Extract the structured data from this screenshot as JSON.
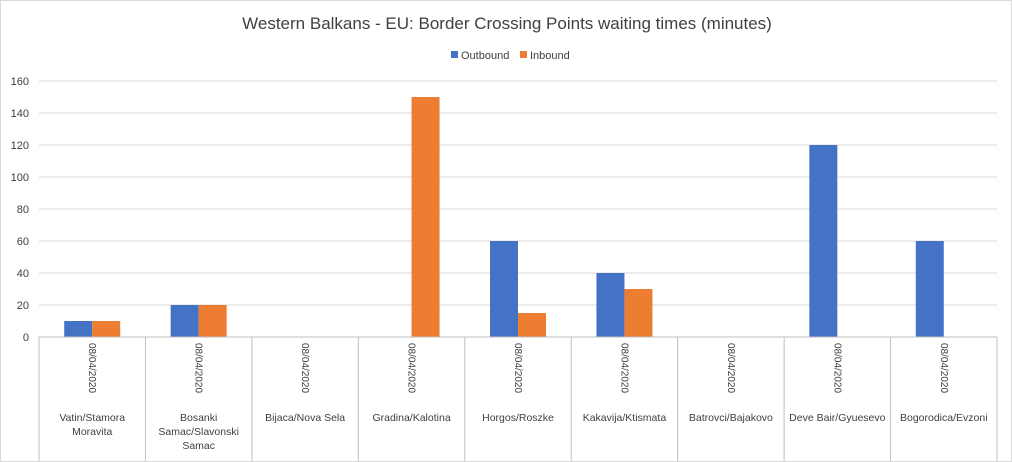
{
  "chart_data": {
    "type": "bar",
    "title": "Western Balkans - EU: Border Crossing Points waiting times (minutes)",
    "xlabel": "",
    "ylabel": "",
    "ylim": [
      0,
      160
    ],
    "yticks": [
      0,
      20,
      40,
      60,
      80,
      100,
      120,
      140,
      160
    ],
    "grid": true,
    "legend_position": "top-center",
    "date": "08/04/2020",
    "categories": [
      [
        "Vatin/Stamora",
        "Moravita"
      ],
      [
        "Bosanki",
        "Samac/Slavonski",
        "Samac"
      ],
      [
        "Bijaca/Nova Sela"
      ],
      [
        "Gradina/Kalotina"
      ],
      [
        "Horgos/Roszke"
      ],
      [
        "Kakavija/Ktismata"
      ],
      [
        "Batrovci/Bajakovo"
      ],
      [
        "Deve Bair/Gyuesevo"
      ],
      [
        "Bogorodica/Evzoni"
      ]
    ],
    "series": [
      {
        "name": "Outbound",
        "color": "#4472c4",
        "values": [
          10,
          20,
          0,
          0,
          60,
          40,
          0,
          120,
          60
        ]
      },
      {
        "name": "Inbound",
        "color": "#ed7d31",
        "values": [
          10,
          20,
          0,
          150,
          15,
          30,
          0,
          0,
          0
        ]
      }
    ]
  }
}
